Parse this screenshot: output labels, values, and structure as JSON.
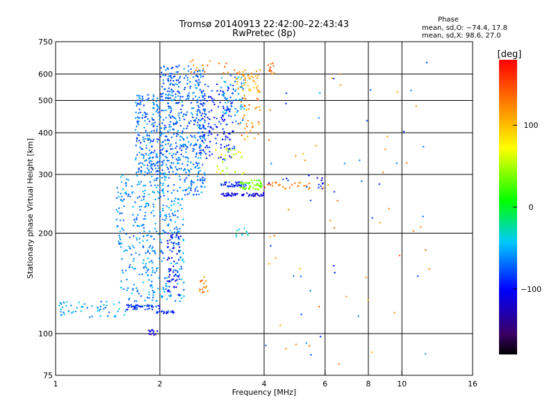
{
  "chart_data": {
    "type": "scatter",
    "title": "Tromsø 20140913 22:42:00–22:43:43",
    "subtitle": "RwPretec (8p)",
    "xlabel": "Frequency [MHz]",
    "ylabel": "Stationary phase Virtual Height [km]",
    "xscale": "log",
    "yscale": "log",
    "xlim": [
      1,
      16
    ],
    "ylim": [
      75,
      750
    ],
    "grid": true,
    "x_ticks": [
      1,
      2,
      4,
      6,
      8,
      10,
      16
    ],
    "x_tick_labels": [
      "1",
      "2",
      "4",
      "6",
      "8",
      "10",
      "16"
    ],
    "x_grid": [
      2,
      4,
      6,
      8,
      10
    ],
    "y_ticks": [
      75,
      100,
      200,
      300,
      400,
      500,
      600,
      750
    ],
    "y_tick_labels": [
      "75",
      "100",
      "200",
      "300",
      "400",
      "500",
      "600",
      "750"
    ],
    "y_grid": [
      100,
      200,
      300,
      400,
      500,
      600
    ],
    "phase_stats": {
      "heading": "Phase",
      "line_o": "mean, sd,O: −74.4, 17.8",
      "line_x": "mean, sd,X:  98.6, 27.0"
    },
    "colorbar": {
      "label": "[deg]",
      "range": [
        -180,
        180
      ],
      "ticks": [
        100,
        0,
        -100
      ],
      "tick_labels": [
        "100",
        "0",
        "−100"
      ]
    },
    "series": [
      {
        "clusters": [
          {
            "x": [
              1.02,
              1.6
            ],
            "y": [
              112,
              125
            ],
            "phase": -55,
            "count": 55
          },
          {
            "x": [
              1.6,
              2.0
            ],
            "y": [
              118,
              122
            ],
            "phase": -85,
            "count": 45
          },
          {
            "x": [
              1.95,
              2.2
            ],
            "y": [
              115,
              117
            ],
            "phase": -95,
            "count": 20
          },
          {
            "x": [
              1.85,
              2.0
            ],
            "y": [
              99,
              103
            ],
            "phase": -115,
            "count": 12
          },
          {
            "x": [
              1.5,
              2.35
            ],
            "y": [
              125,
              300
            ],
            "phase": -60,
            "count": 420
          },
          {
            "x": [
              1.7,
              2.35
            ],
            "y": [
              300,
              520
            ],
            "phase": -70,
            "count": 380
          },
          {
            "x": [
              2.0,
              2.3
            ],
            "y": [
              500,
              640
            ],
            "phase": -75,
            "count": 80
          },
          {
            "x": [
              2.1,
              2.3
            ],
            "y": [
              130,
              200
            ],
            "phase": -105,
            "count": 60
          },
          {
            "x": [
              2.35,
              2.7
            ],
            "y": [
              260,
              640
            ],
            "phase": -70,
            "count": 240
          },
          {
            "x": [
              2.6,
              3.3
            ],
            "y": [
              330,
              560
            ],
            "phase": -90,
            "count": 150
          },
          {
            "x": [
              3.0,
              3.6
            ],
            "y": [
              275,
              285
            ],
            "phase": -90,
            "count": 40
          },
          {
            "x": [
              3.0,
              4.0
            ],
            "y": [
              258,
              264
            ],
            "phase": -110,
            "count": 55
          },
          {
            "x": [
              3.0,
              3.5
            ],
            "y": [
              420,
              600
            ],
            "phase": -60,
            "count": 60
          },
          {
            "x": [
              3.3,
              3.9
            ],
            "y": [
              520,
              620
            ],
            "phase": 110,
            "count": 45
          },
          {
            "x": [
              3.4,
              3.9
            ],
            "y": [
              380,
              520
            ],
            "phase": 125,
            "count": 35
          },
          {
            "x": [
              3.4,
              3.95
            ],
            "y": [
              270,
              290
            ],
            "phase": 35,
            "count": 50
          },
          {
            "x": [
              2.9,
              3.5
            ],
            "y": [
              300,
              360
            ],
            "phase": 60,
            "count": 30
          },
          {
            "x": [
              4.0,
              5.5
            ],
            "y": [
              270,
              285
            ],
            "phase": 130,
            "count": 25
          },
          {
            "x": [
              2.4,
              3.4
            ],
            "y": [
              600,
              660
            ],
            "phase": 130,
            "count": 20
          },
          {
            "x": [
              2.6,
              2.75
            ],
            "y": [
              130,
              150
            ],
            "phase": 130,
            "count": 15
          },
          {
            "x": [
              4.1,
              4.3
            ],
            "y": [
              600,
              650
            ],
            "phase": 135,
            "count": 12
          },
          {
            "x": [
              4.0,
              6.0
            ],
            "y": [
              270,
              300
            ],
            "phase": -100,
            "count": 15
          },
          {
            "x": [
              3.3,
              3.6
            ],
            "y": [
              195,
              210
            ],
            "phase": -30,
            "count": 10
          },
          {
            "x": [
              4.0,
              12.0
            ],
            "y": [
              80,
              650
            ],
            "phase": 120,
            "count": 45
          },
          {
            "x": [
              4.0,
              12.0
            ],
            "y": [
              80,
              650
            ],
            "phase": -75,
            "count": 35
          }
        ]
      }
    ]
  }
}
